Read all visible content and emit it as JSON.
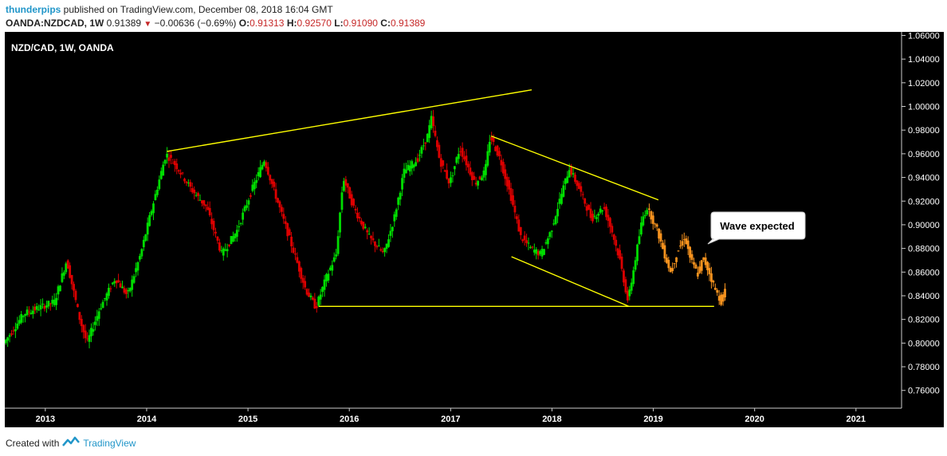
{
  "header": {
    "author": "thunderpips",
    "published_text": "published on TradingView.com, December 08, 2018 16:04 GMT",
    "symbol": "OANDA:NZDCAD, 1W",
    "last": "0.91389",
    "change": "−0.00636 (−0.69%)",
    "open_label": "O:",
    "open": "0.91313",
    "high_label": "H:",
    "high": "0.92570",
    "low_label": "L:",
    "low": "0.91090",
    "close_label": "C:",
    "close": "0.91389"
  },
  "footer": {
    "created_text": "Created with",
    "brand": "TradingView",
    "icon": "tradingview-logo-icon"
  },
  "colors": {
    "up": "#00dd00",
    "down": "#dd0000",
    "projection": "#f7931e",
    "trendline": "#ffff00",
    "background": "#000000"
  },
  "chart_data": {
    "type": "candlestick",
    "title": "NZD/CAD, 1W, OANDA",
    "xlabel": "",
    "ylabel": "",
    "x_ticks": [
      "2013",
      "2014",
      "2015",
      "2016",
      "2017",
      "2018",
      "2019",
      "2020",
      "2021"
    ],
    "y_ticks": [
      "1.06000",
      "1.04000",
      "1.02000",
      "1.00000",
      "0.98000",
      "0.96000",
      "0.94000",
      "0.92000",
      "0.90000",
      "0.88000",
      "0.86000",
      "0.84000",
      "0.82000",
      "0.80000",
      "0.78000",
      "0.76000"
    ],
    "xlim": [
      2012.6,
      2021.45
    ],
    "ylim": [
      0.745,
      1.063
    ],
    "grid": false,
    "price_path": [
      [
        2012.6,
        0.8
      ],
      [
        2012.8,
        0.825
      ],
      [
        2013.1,
        0.835
      ],
      [
        2013.22,
        0.87
      ],
      [
        2013.35,
        0.82
      ],
      [
        2013.42,
        0.8
      ],
      [
        2013.55,
        0.83
      ],
      [
        2013.7,
        0.855
      ],
      [
        2013.82,
        0.84
      ],
      [
        2013.95,
        0.875
      ],
      [
        2014.05,
        0.91
      ],
      [
        2014.2,
        0.96
      ],
      [
        2014.3,
        0.95
      ],
      [
        2014.45,
        0.93
      ],
      [
        2014.6,
        0.915
      ],
      [
        2014.75,
        0.875
      ],
      [
        2014.9,
        0.895
      ],
      [
        2015.05,
        0.93
      ],
      [
        2015.17,
        0.955
      ],
      [
        2015.3,
        0.92
      ],
      [
        2015.45,
        0.88
      ],
      [
        2015.58,
        0.845
      ],
      [
        2015.68,
        0.83
      ],
      [
        2015.78,
        0.855
      ],
      [
        2015.88,
        0.875
      ],
      [
        2015.95,
        0.94
      ],
      [
        2016.05,
        0.915
      ],
      [
        2016.2,
        0.89
      ],
      [
        2016.35,
        0.875
      ],
      [
        2016.45,
        0.905
      ],
      [
        2016.55,
        0.945
      ],
      [
        2016.68,
        0.955
      ],
      [
        2016.78,
        0.975
      ],
      [
        2016.82,
        0.99
      ],
      [
        2016.9,
        0.955
      ],
      [
        2017.0,
        0.935
      ],
      [
        2017.1,
        0.965
      ],
      [
        2017.25,
        0.935
      ],
      [
        2017.35,
        0.945
      ],
      [
        2017.4,
        0.975
      ],
      [
        2017.5,
        0.955
      ],
      [
        2017.6,
        0.925
      ],
      [
        2017.7,
        0.89
      ],
      [
        2017.8,
        0.88
      ],
      [
        2017.9,
        0.875
      ],
      [
        2018.0,
        0.895
      ],
      [
        2018.1,
        0.925
      ],
      [
        2018.18,
        0.948
      ],
      [
        2018.28,
        0.93
      ],
      [
        2018.4,
        0.905
      ],
      [
        2018.52,
        0.915
      ],
      [
        2018.6,
        0.895
      ],
      [
        2018.68,
        0.87
      ],
      [
        2018.76,
        0.835
      ],
      [
        2018.84,
        0.875
      ],
      [
        2018.9,
        0.905
      ],
      [
        2018.95,
        0.915
      ]
    ],
    "projection_path": [
      [
        2018.95,
        0.915
      ],
      [
        2019.05,
        0.895
      ],
      [
        2019.12,
        0.875
      ],
      [
        2019.18,
        0.86
      ],
      [
        2019.25,
        0.878
      ],
      [
        2019.32,
        0.89
      ],
      [
        2019.38,
        0.87
      ],
      [
        2019.45,
        0.858
      ],
      [
        2019.5,
        0.872
      ],
      [
        2019.56,
        0.86
      ],
      [
        2019.62,
        0.845
      ],
      [
        2019.68,
        0.835
      ],
      [
        2019.72,
        0.845
      ]
    ],
    "trendlines": [
      {
        "from": [
          2014.2,
          0.962
        ],
        "to": [
          2017.8,
          1.014
        ]
      },
      {
        "from": [
          2017.4,
          0.975
        ],
        "to": [
          2019.05,
          0.921
        ]
      },
      {
        "from": [
          2017.6,
          0.873
        ],
        "to": [
          2018.76,
          0.831
        ]
      },
      {
        "from": [
          2015.7,
          0.831
        ],
        "to": [
          2019.6,
          0.831
        ]
      }
    ],
    "annotations": [
      {
        "text": "Wave expected",
        "x": 2019.95,
        "y": 0.893
      }
    ]
  }
}
